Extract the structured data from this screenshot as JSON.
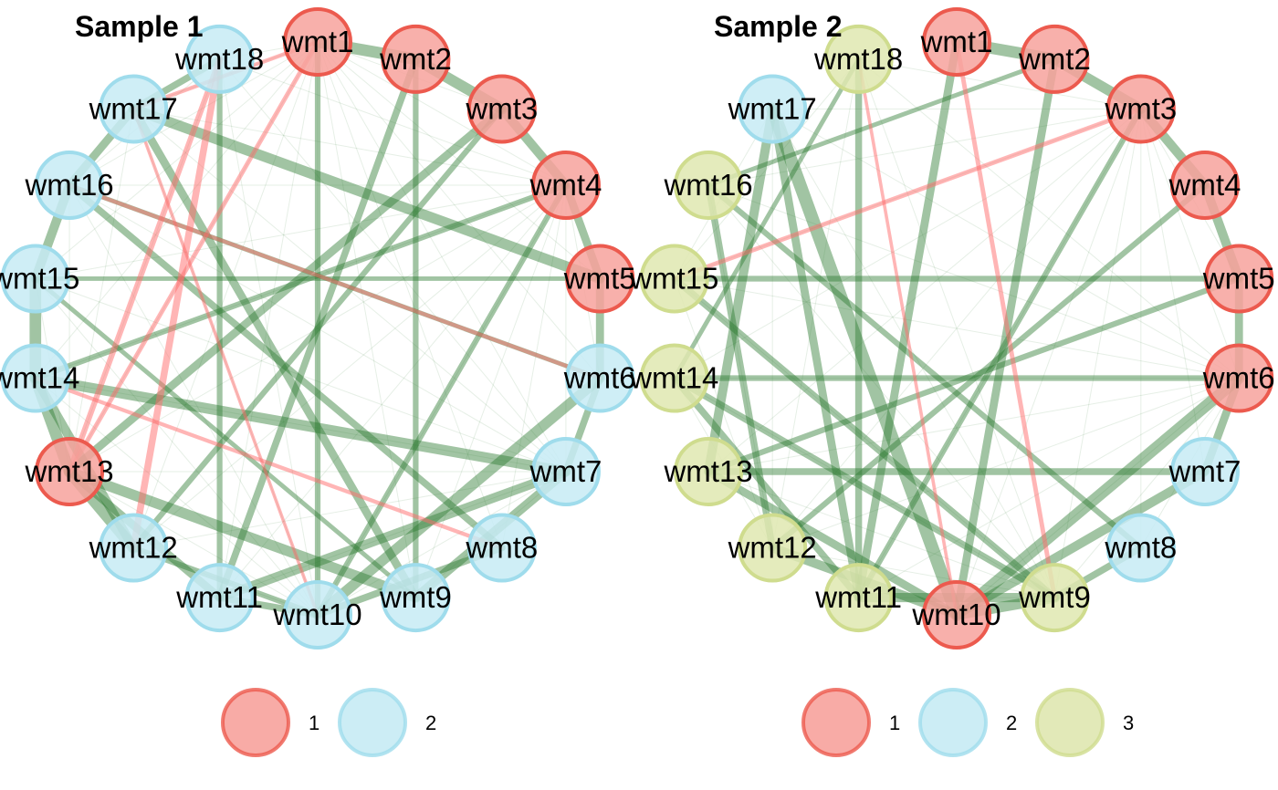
{
  "colors": {
    "positive_edge": "#2e7d32",
    "negative_edge": "#ff6b6b",
    "group_1": {
      "fill": "#f7a29c",
      "stroke": "#ec5a4e"
    },
    "group_2": {
      "fill": "#c7ebf4",
      "stroke": "#9fdcec"
    },
    "group_3": {
      "fill": "#dfe7b0",
      "stroke": "#cfdc8e"
    }
  },
  "panels": [
    {
      "title": "Sample 1",
      "nodes": [
        {
          "label": "wmt1",
          "group": "1"
        },
        {
          "label": "wmt2",
          "group": "1"
        },
        {
          "label": "wmt3",
          "group": "1"
        },
        {
          "label": "wmt4",
          "group": "1"
        },
        {
          "label": "wmt5",
          "group": "1"
        },
        {
          "label": "wmt6",
          "group": "2"
        },
        {
          "label": "wmt7",
          "group": "2"
        },
        {
          "label": "wmt8",
          "group": "2"
        },
        {
          "label": "wmt9",
          "group": "2"
        },
        {
          "label": "wmt10",
          "group": "2"
        },
        {
          "label": "wmt11",
          "group": "2"
        },
        {
          "label": "wmt12",
          "group": "2"
        },
        {
          "label": "wmt13",
          "group": "1"
        },
        {
          "label": "wmt14",
          "group": "2"
        },
        {
          "label": "wmt15",
          "group": "2"
        },
        {
          "label": "wmt16",
          "group": "2"
        },
        {
          "label": "wmt17",
          "group": "2"
        },
        {
          "label": "wmt18",
          "group": "2"
        }
      ],
      "edges": [
        {
          "source": 1,
          "target": 2,
          "weight": 0.9,
          "sign": "positive"
        },
        {
          "source": 2,
          "target": 3,
          "weight": 0.85,
          "sign": "positive"
        },
        {
          "source": 3,
          "target": 4,
          "weight": 0.7,
          "sign": "positive"
        },
        {
          "source": 4,
          "target": 5,
          "weight": 0.6,
          "sign": "positive"
        },
        {
          "source": 5,
          "target": 6,
          "weight": 0.6,
          "sign": "positive"
        },
        {
          "source": 6,
          "target": 7,
          "weight": 0.5,
          "sign": "positive"
        },
        {
          "source": 7,
          "target": 9,
          "weight": 0.7,
          "sign": "positive"
        },
        {
          "source": 6,
          "target": 10,
          "weight": 0.8,
          "sign": "positive"
        },
        {
          "source": 7,
          "target": 11,
          "weight": 0.7,
          "sign": "positive"
        },
        {
          "source": 13,
          "target": 14,
          "weight": 0.9,
          "sign": "positive"
        },
        {
          "source": 14,
          "target": 15,
          "weight": 0.9,
          "sign": "positive"
        },
        {
          "source": 15,
          "target": 16,
          "weight": 0.7,
          "sign": "positive"
        },
        {
          "source": 16,
          "target": 17,
          "weight": 0.6,
          "sign": "positive"
        },
        {
          "source": 17,
          "target": 18,
          "weight": 0.5,
          "sign": "positive"
        },
        {
          "source": 12,
          "target": 13,
          "weight": 0.9,
          "sign": "positive"
        },
        {
          "source": 12,
          "target": 14,
          "weight": 0.7,
          "sign": "positive"
        },
        {
          "source": 11,
          "target": 13,
          "weight": 0.6,
          "sign": "positive"
        },
        {
          "source": 10,
          "target": 11,
          "weight": 0.5,
          "sign": "positive"
        },
        {
          "source": 13,
          "target": 9,
          "weight": 0.8,
          "sign": "positive"
        },
        {
          "source": 14,
          "target": 7,
          "weight": 0.8,
          "sign": "positive"
        },
        {
          "source": 17,
          "target": 5,
          "weight": 0.8,
          "sign": "positive"
        },
        {
          "source": 17,
          "target": 9,
          "weight": 0.6,
          "sign": "positive"
        },
        {
          "source": 16,
          "target": 8,
          "weight": 0.5,
          "sign": "positive"
        },
        {
          "source": 1,
          "target": 10,
          "weight": 0.4,
          "sign": "positive"
        },
        {
          "source": 2,
          "target": 11,
          "weight": 0.5,
          "sign": "positive"
        },
        {
          "source": 2,
          "target": 9,
          "weight": 0.4,
          "sign": "positive"
        },
        {
          "source": 18,
          "target": 11,
          "weight": 0.4,
          "sign": "positive"
        },
        {
          "source": 3,
          "target": 13,
          "weight": 0.6,
          "sign": "positive"
        },
        {
          "source": 3,
          "target": 12,
          "weight": 0.4,
          "sign": "positive"
        },
        {
          "source": 4,
          "target": 14,
          "weight": 0.4,
          "sign": "positive"
        },
        {
          "source": 4,
          "target": 10,
          "weight": 0.4,
          "sign": "positive"
        },
        {
          "source": 15,
          "target": 5,
          "weight": 0.3,
          "sign": "positive"
        },
        {
          "source": 15,
          "target": 9,
          "weight": 0.3,
          "sign": "positive"
        },
        {
          "source": 16,
          "target": 6,
          "weight": 0.3,
          "sign": "positive"
        },
        {
          "source": 8,
          "target": 10,
          "weight": 0.5,
          "sign": "positive"
        },
        {
          "source": 12,
          "target": 10,
          "weight": 0.4,
          "sign": "positive"
        },
        {
          "source": 18,
          "target": 12,
          "weight": 0.5,
          "sign": "negative"
        },
        {
          "source": 18,
          "target": 13,
          "weight": 0.4,
          "sign": "negative"
        },
        {
          "source": 1,
          "target": 13,
          "weight": 0.3,
          "sign": "negative"
        },
        {
          "source": 1,
          "target": 17,
          "weight": 0.25,
          "sign": "negative"
        },
        {
          "source": 16,
          "target": 6,
          "weight": 0.25,
          "sign": "negative"
        },
        {
          "source": 14,
          "target": 8,
          "weight": 0.25,
          "sign": "negative"
        },
        {
          "source": 17,
          "target": 10,
          "weight": 0.2,
          "sign": "negative"
        }
      ]
    },
    {
      "title": "Sample 2",
      "nodes": [
        {
          "label": "wmt1",
          "group": "1"
        },
        {
          "label": "wmt2",
          "group": "1"
        },
        {
          "label": "wmt3",
          "group": "1"
        },
        {
          "label": "wmt4",
          "group": "1"
        },
        {
          "label": "wmt5",
          "group": "1"
        },
        {
          "label": "wmt6",
          "group": "1"
        },
        {
          "label": "wmt7",
          "group": "2"
        },
        {
          "label": "wmt8",
          "group": "2"
        },
        {
          "label": "wmt9",
          "group": "3"
        },
        {
          "label": "wmt10",
          "group": "1"
        },
        {
          "label": "wmt11",
          "group": "3"
        },
        {
          "label": "wmt12",
          "group": "3"
        },
        {
          "label": "wmt13",
          "group": "3"
        },
        {
          "label": "wmt14",
          "group": "3"
        },
        {
          "label": "wmt15",
          "group": "3"
        },
        {
          "label": "wmt16",
          "group": "3"
        },
        {
          "label": "wmt17",
          "group": "2"
        },
        {
          "label": "wmt18",
          "group": "3"
        }
      ],
      "edges": [
        {
          "source": 1,
          "target": 2,
          "weight": 0.9,
          "sign": "positive"
        },
        {
          "source": 2,
          "target": 3,
          "weight": 0.8,
          "sign": "positive"
        },
        {
          "source": 3,
          "target": 4,
          "weight": 0.7,
          "sign": "positive"
        },
        {
          "source": 4,
          "target": 5,
          "weight": 0.7,
          "sign": "positive"
        },
        {
          "source": 5,
          "target": 6,
          "weight": 0.6,
          "sign": "positive"
        },
        {
          "source": 6,
          "target": 7,
          "weight": 0.6,
          "sign": "positive"
        },
        {
          "source": 17,
          "target": 10,
          "weight": 1.0,
          "sign": "positive"
        },
        {
          "source": 6,
          "target": 10,
          "weight": 0.9,
          "sign": "positive"
        },
        {
          "source": 7,
          "target": 10,
          "weight": 0.7,
          "sign": "positive"
        },
        {
          "source": 2,
          "target": 10,
          "weight": 0.6,
          "sign": "positive"
        },
        {
          "source": 1,
          "target": 11,
          "weight": 0.6,
          "sign": "positive"
        },
        {
          "source": 13,
          "target": 7,
          "weight": 0.5,
          "sign": "positive"
        },
        {
          "source": 14,
          "target": 6,
          "weight": 0.4,
          "sign": "positive"
        },
        {
          "source": 15,
          "target": 5,
          "weight": 0.4,
          "sign": "positive"
        },
        {
          "source": 16,
          "target": 8,
          "weight": 0.4,
          "sign": "positive"
        },
        {
          "source": 12,
          "target": 10,
          "weight": 0.7,
          "sign": "positive"
        },
        {
          "source": 13,
          "target": 10,
          "weight": 0.6,
          "sign": "positive"
        },
        {
          "source": 14,
          "target": 9,
          "weight": 0.5,
          "sign": "positive"
        },
        {
          "source": 15,
          "target": 9,
          "weight": 0.5,
          "sign": "positive"
        },
        {
          "source": 17,
          "target": 13,
          "weight": 0.7,
          "sign": "positive"
        },
        {
          "source": 17,
          "target": 11,
          "weight": 0.6,
          "sign": "positive"
        },
        {
          "source": 18,
          "target": 11,
          "weight": 0.5,
          "sign": "positive"
        },
        {
          "source": 16,
          "target": 12,
          "weight": 0.5,
          "sign": "positive"
        },
        {
          "source": 14,
          "target": 11,
          "weight": 0.5,
          "sign": "positive"
        },
        {
          "source": 11,
          "target": 9,
          "weight": 0.7,
          "sign": "positive"
        },
        {
          "source": 9,
          "target": 10,
          "weight": 0.8,
          "sign": "positive"
        },
        {
          "source": 8,
          "target": 9,
          "weight": 0.5,
          "sign": "positive"
        },
        {
          "source": 3,
          "target": 11,
          "weight": 0.4,
          "sign": "positive"
        },
        {
          "source": 4,
          "target": 12,
          "weight": 0.4,
          "sign": "positive"
        },
        {
          "source": 5,
          "target": 13,
          "weight": 0.4,
          "sign": "positive"
        },
        {
          "source": 18,
          "target": 14,
          "weight": 0.3,
          "sign": "positive"
        },
        {
          "source": 2,
          "target": 16,
          "weight": 0.3,
          "sign": "positive"
        },
        {
          "source": 1,
          "target": 9,
          "weight": 0.3,
          "sign": "negative"
        },
        {
          "source": 3,
          "target": 15,
          "weight": 0.3,
          "sign": "negative"
        },
        {
          "source": 18,
          "target": 10,
          "weight": 0.2,
          "sign": "negative"
        }
      ]
    }
  ],
  "legends": [
    {
      "items": [
        {
          "group": "1",
          "label": "1"
        },
        {
          "group": "2",
          "label": "2"
        }
      ]
    },
    {
      "items": [
        {
          "group": "1",
          "label": "1"
        },
        {
          "group": "2",
          "label": "2"
        },
        {
          "group": "3",
          "label": "3"
        }
      ]
    }
  ]
}
